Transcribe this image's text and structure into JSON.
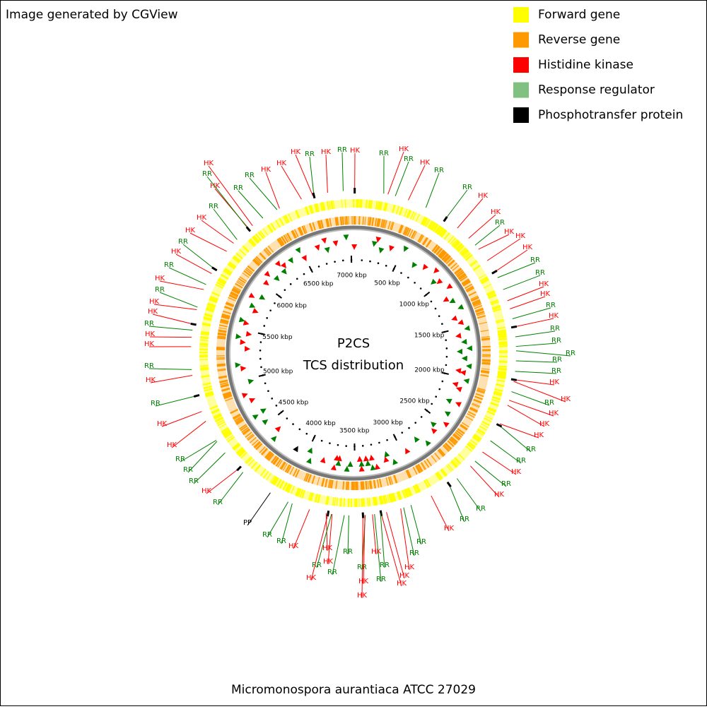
{
  "header": "Image generated by CGView",
  "legend": [
    {
      "name": "Forward gene",
      "color": "#ffff00"
    },
    {
      "name": "Reverse gene",
      "color": "#ff9900"
    },
    {
      "name": "Histidine kinase",
      "color": "#ff0000"
    },
    {
      "name": "Response regulator",
      "color": "#80c080"
    },
    {
      "name": "Phosphotransfer protein",
      "color": "#000000"
    }
  ],
  "title": "P2CS",
  "subtitle": "TCS distribution",
  "footer": "Micromonospora aurantiaca ATCC 27029",
  "map": {
    "type": "circular",
    "lim": [
      0,
      7025
    ],
    "ticks": [
      {
        "value": 500,
        "label": "500 kbp"
      },
      {
        "value": 1000,
        "label": "1000 kbp"
      },
      {
        "value": 1500,
        "label": "1500 kbp"
      },
      {
        "value": 2000,
        "label": "2000 kbp"
      },
      {
        "value": 2500,
        "label": "2500 kbp"
      },
      {
        "value": 3000,
        "label": "3000 kbp"
      },
      {
        "value": 3500,
        "label": "3500 kbp"
      },
      {
        "value": 4000,
        "label": "4000 kbp"
      },
      {
        "value": 4500,
        "label": "4500 kbp"
      },
      {
        "value": 5000,
        "label": "5000 kbp"
      },
      {
        "value": 5500,
        "label": "5500 kbp"
      },
      {
        "value": 6000,
        "label": "6000 kbp"
      },
      {
        "value": 6500,
        "label": "6500 kbp"
      },
      {
        "value": 7000,
        "label": "7000 kbp"
      }
    ],
    "feature_labels": [
      "HK",
      "RR",
      "HK",
      "RR",
      "HK",
      "RR",
      "RR",
      "HK",
      "HK",
      "RR",
      "HK",
      "HK",
      "HK",
      "RR",
      "RR",
      "HK",
      "HK",
      "RR",
      "HK",
      "RR",
      "RR",
      "RR",
      "RR",
      "RR",
      "HK",
      "HK",
      "RR",
      "HK",
      "HK",
      "HK",
      "RR",
      "RR",
      "HK",
      "RR",
      "HK",
      "RR",
      "RR",
      "HK",
      "RR",
      "RR",
      "HK",
      "HK",
      "HK",
      "RR",
      "RR",
      "HK",
      "RR",
      "HK",
      "HK",
      "RR",
      "HK",
      "HK",
      "RR",
      "RR",
      "HK",
      "HK",
      "RR",
      "RR",
      "PP",
      "RR",
      "HK",
      "RR",
      "RR",
      "RR",
      "HK",
      "HK",
      "RR",
      "HK",
      "RR",
      "HK",
      "HK",
      "RR",
      "HK",
      "HK",
      "RR",
      "HK",
      "RR",
      "HK",
      "RR",
      "HK",
      "HK",
      "RR",
      "RR",
      "HK",
      "RR",
      "HK",
      "RR",
      "HK",
      "HK",
      "HK",
      "RR",
      "HK",
      "RR"
    ]
  }
}
